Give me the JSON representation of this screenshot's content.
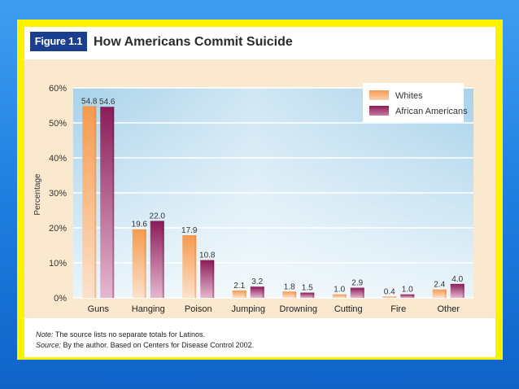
{
  "figure": {
    "badge": "Figure 1.1",
    "title": "How Americans Commit Suicide"
  },
  "notes": {
    "note_label": "Note:",
    "note_text": " The source lists no separate totals for Latinos.",
    "source_label": "Source:",
    "source_text": " By the author. Based on Centers for Disease Control 2002."
  },
  "colors": {
    "whites": "#f5a05a",
    "african_americans": "#8c1f5a",
    "plot_bg_top": "#b9dcef",
    "plot_bg_bottom": "#e6f3fa",
    "outer_bg": "#fbe9cf"
  },
  "chart_data": {
    "type": "bar",
    "ylabel": "Percentage",
    "xlabel": "",
    "ylim": [
      0,
      60
    ],
    "yticks": [
      "0%",
      "10%",
      "20%",
      "30%",
      "40%",
      "50%",
      "60%"
    ],
    "categories": [
      "Guns",
      "Hanging",
      "Poison",
      "Jumping",
      "Drowning",
      "Cutting",
      "Fire",
      "Other"
    ],
    "series": [
      {
        "name": "Whites",
        "values": [
          54.8,
          19.6,
          17.9,
          2.1,
          1.8,
          1.0,
          0.4,
          2.4
        ],
        "labels": [
          "54.8",
          "19.6",
          "17.9",
          "2.1",
          "1.8",
          "1.0",
          "0.4",
          "2.4"
        ]
      },
      {
        "name": "African Americans",
        "values": [
          54.6,
          22.0,
          10.8,
          3.2,
          1.5,
          2.9,
          1.0,
          4.0
        ],
        "labels": [
          "54.6",
          "22.0",
          "10.8",
          "3.2",
          "1.5",
          "2.9",
          "1.0",
          "4.0"
        ]
      }
    ],
    "grid": true,
    "legend_position": "top-right"
  }
}
